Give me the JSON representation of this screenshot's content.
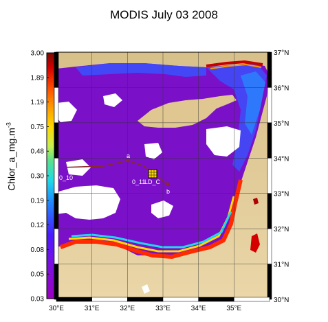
{
  "title": "MODIS July 03 2008",
  "colorbar": {
    "label": "Chlor_a_mg.m",
    "label_exponent": "-3",
    "ticks": [
      "3.00",
      "1.89",
      "1.19",
      "0.75",
      "0.48",
      "0.30",
      "0.19",
      "0.12",
      "0.08",
      "0.05",
      "0.03"
    ],
    "colors": [
      "#7a0a00",
      "#d40000",
      "#ff4a00",
      "#ff9a00",
      "#ffd800",
      "#c8f050",
      "#58e090",
      "#20d8e8",
      "#1e90ff",
      "#2040ff",
      "#4a1aff",
      "#7a10e0",
      "#9a00c0"
    ]
  },
  "axes": {
    "x_ticks": [
      "30°E",
      "31°E",
      "32°E",
      "33°E",
      "34°E",
      "35°E"
    ],
    "y_ticks": [
      "37°N",
      "36°N",
      "35°N",
      "34°N",
      "33°N",
      "32°N",
      "31°N",
      "30°N"
    ]
  },
  "stations": [
    {
      "label": "a"
    },
    {
      "label": "b"
    },
    {
      "label": "0_10"
    },
    {
      "label": "0_11"
    },
    {
      "label": "LD_C"
    }
  ],
  "colors": {
    "land": "#e4cc98",
    "sea_low": "#7a10c8",
    "sea_mid": "#3a52ff",
    "coast_high": "#ff2a00",
    "cloud": "#ffffff"
  }
}
